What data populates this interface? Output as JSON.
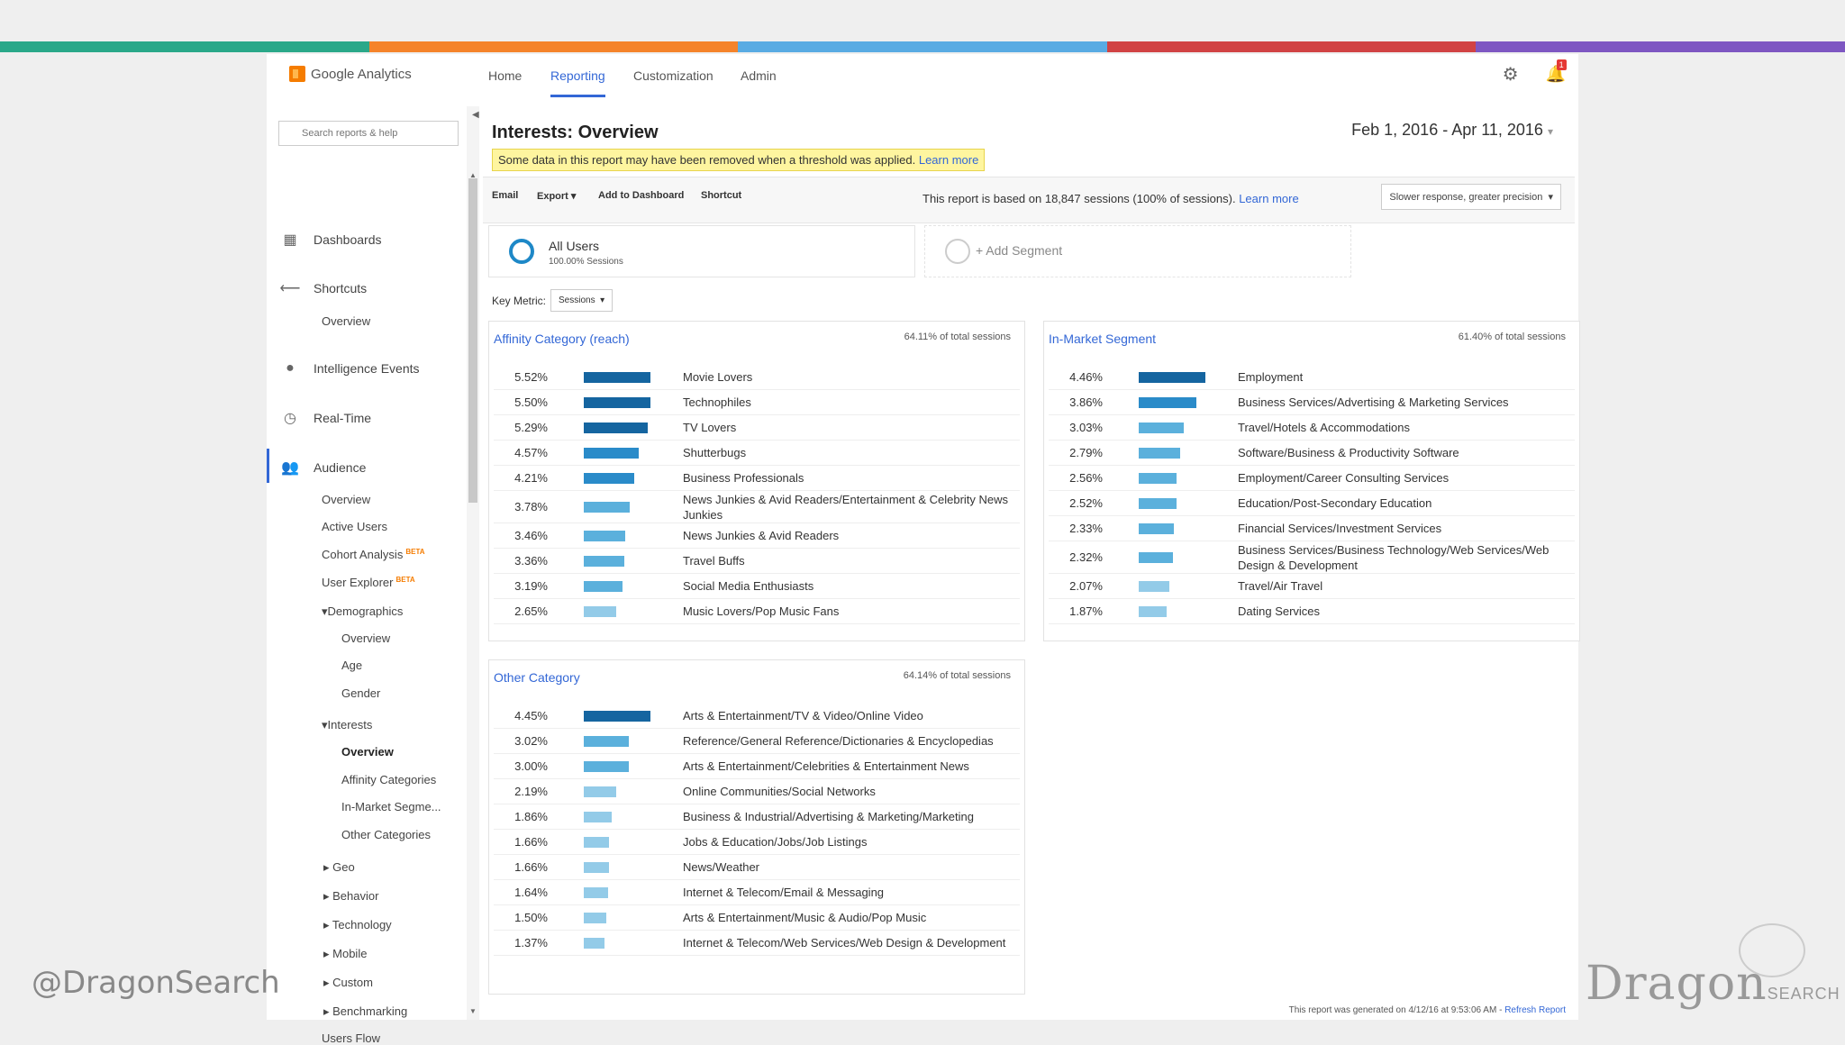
{
  "colors": {
    "strip": [
      "#2aa889",
      "#f5832a",
      "#59abe3",
      "#d14344",
      "#7e57c2"
    ],
    "accent": "#3367d6",
    "bar_dark": "#1565a0",
    "bar_mid": "#2a8bc9",
    "bar_light": "#5bb0dc",
    "bar_lighter": "#93cbe8"
  },
  "header": {
    "logo": "Google Analytics",
    "tabs": [
      "Home",
      "Reporting",
      "Customization",
      "Admin"
    ],
    "active_tab": "Reporting",
    "notification_count": "1"
  },
  "sidebar": {
    "search_placeholder": "Search reports & help",
    "dashboards": "Dashboards",
    "shortcuts": "Shortcuts",
    "shortcuts_overview": "Overview",
    "intelligence": "Intelligence Events",
    "realtime": "Real-Time",
    "audience": "Audience",
    "audience_items": {
      "overview": "Overview",
      "active_users": "Active Users",
      "cohort": "Cohort Analysis",
      "user_explorer": "User Explorer",
      "beta": "BETA",
      "demographics": "Demographics",
      "demo_overview": "Overview",
      "age": "Age",
      "gender": "Gender",
      "interests": "Interests",
      "int_overview": "Overview",
      "affinity": "Affinity Categories",
      "inmarket": "In-Market Segme...",
      "other": "Other Categories",
      "geo": "Geo",
      "behavior": "Behavior",
      "technology": "Technology",
      "mobile": "Mobile",
      "custom": "Custom",
      "benchmarking": "Benchmarking",
      "users_flow": "Users Flow"
    }
  },
  "report": {
    "title": "Interests: Overview",
    "date_range": "Feb 1, 2016 - Apr 11, 2016",
    "notice": "Some data in this report may have been removed when a threshold was applied.",
    "notice_link": "Learn more",
    "toolbar": {
      "email": "Email",
      "export": "Export",
      "add_dashboard": "Add to Dashboard",
      "shortcut": "Shortcut"
    },
    "sessions_note": "This report is based on 18,847 sessions (100% of sessions).",
    "sessions_link": "Learn more",
    "precision": "Slower response, greater precision",
    "segment_all": "All Users",
    "segment_all_sub": "100.00% Sessions",
    "segment_add": "+ Add Segment",
    "key_metric_label": "Key Metric:",
    "key_metric_value": "Sessions",
    "footer": "This report was generated on 4/12/16 at 9:53:06 AM -",
    "footer_link": "Refresh Report"
  },
  "panels": {
    "affinity": {
      "title": "Affinity Category (reach)",
      "total": "64.11% of total sessions",
      "rows": [
        {
          "pct": "5.52%",
          "value": 5.52,
          "label": "Movie Lovers"
        },
        {
          "pct": "5.50%",
          "value": 5.5,
          "label": "Technophiles"
        },
        {
          "pct": "5.29%",
          "value": 5.29,
          "label": "TV Lovers"
        },
        {
          "pct": "4.57%",
          "value": 4.57,
          "label": "Shutterbugs"
        },
        {
          "pct": "4.21%",
          "value": 4.21,
          "label": "Business Professionals"
        },
        {
          "pct": "3.78%",
          "value": 3.78,
          "label": "News Junkies & Avid Readers/Entertainment & Celebrity News Junkies"
        },
        {
          "pct": "3.46%",
          "value": 3.46,
          "label": "News Junkies & Avid Readers"
        },
        {
          "pct": "3.36%",
          "value": 3.36,
          "label": "Travel Buffs"
        },
        {
          "pct": "3.19%",
          "value": 3.19,
          "label": "Social Media Enthusiasts"
        },
        {
          "pct": "2.65%",
          "value": 2.65,
          "label": "Music Lovers/Pop Music Fans"
        }
      ]
    },
    "inmarket": {
      "title": "In-Market Segment",
      "total": "61.40% of total sessions",
      "rows": [
        {
          "pct": "4.46%",
          "value": 4.46,
          "label": "Employment"
        },
        {
          "pct": "3.86%",
          "value": 3.86,
          "label": "Business Services/Advertising & Marketing Services"
        },
        {
          "pct": "3.03%",
          "value": 3.03,
          "label": "Travel/Hotels & Accommodations"
        },
        {
          "pct": "2.79%",
          "value": 2.79,
          "label": "Software/Business & Productivity Software"
        },
        {
          "pct": "2.56%",
          "value": 2.56,
          "label": "Employment/Career Consulting Services"
        },
        {
          "pct": "2.52%",
          "value": 2.52,
          "label": "Education/Post-Secondary Education"
        },
        {
          "pct": "2.33%",
          "value": 2.33,
          "label": "Financial Services/Investment Services"
        },
        {
          "pct": "2.32%",
          "value": 2.32,
          "label": "Business Services/Business Technology/Web Services/Web Design & Development"
        },
        {
          "pct": "2.07%",
          "value": 2.07,
          "label": "Travel/Air Travel"
        },
        {
          "pct": "1.87%",
          "value": 1.87,
          "label": "Dating Services"
        }
      ]
    },
    "other": {
      "title": "Other Category",
      "total": "64.14% of total sessions",
      "rows": [
        {
          "pct": "4.45%",
          "value": 4.45,
          "label": "Arts & Entertainment/TV & Video/Online Video"
        },
        {
          "pct": "3.02%",
          "value": 3.02,
          "label": "Reference/General Reference/Dictionaries & Encyclopedias"
        },
        {
          "pct": "3.00%",
          "value": 3.0,
          "label": "Arts & Entertainment/Celebrities & Entertainment News"
        },
        {
          "pct": "2.19%",
          "value": 2.19,
          "label": "Online Communities/Social Networks"
        },
        {
          "pct": "1.86%",
          "value": 1.86,
          "label": "Business & Industrial/Advertising & Marketing/Marketing"
        },
        {
          "pct": "1.66%",
          "value": 1.66,
          "label": "Jobs & Education/Jobs/Job Listings"
        },
        {
          "pct": "1.66%",
          "value": 1.66,
          "label": "News/Weather"
        },
        {
          "pct": "1.64%",
          "value": 1.64,
          "label": "Internet & Telecom/Email & Messaging"
        },
        {
          "pct": "1.50%",
          "value": 1.5,
          "label": "Arts & Entertainment/Music & Audio/Pop Music"
        },
        {
          "pct": "1.37%",
          "value": 1.37,
          "label": "Internet & Telecom/Web Services/Web Design & Development"
        }
      ]
    }
  },
  "watermark": {
    "handle": "@DragonSearch",
    "logo": "Dragon",
    "logo_suffix": "SEARCH"
  }
}
